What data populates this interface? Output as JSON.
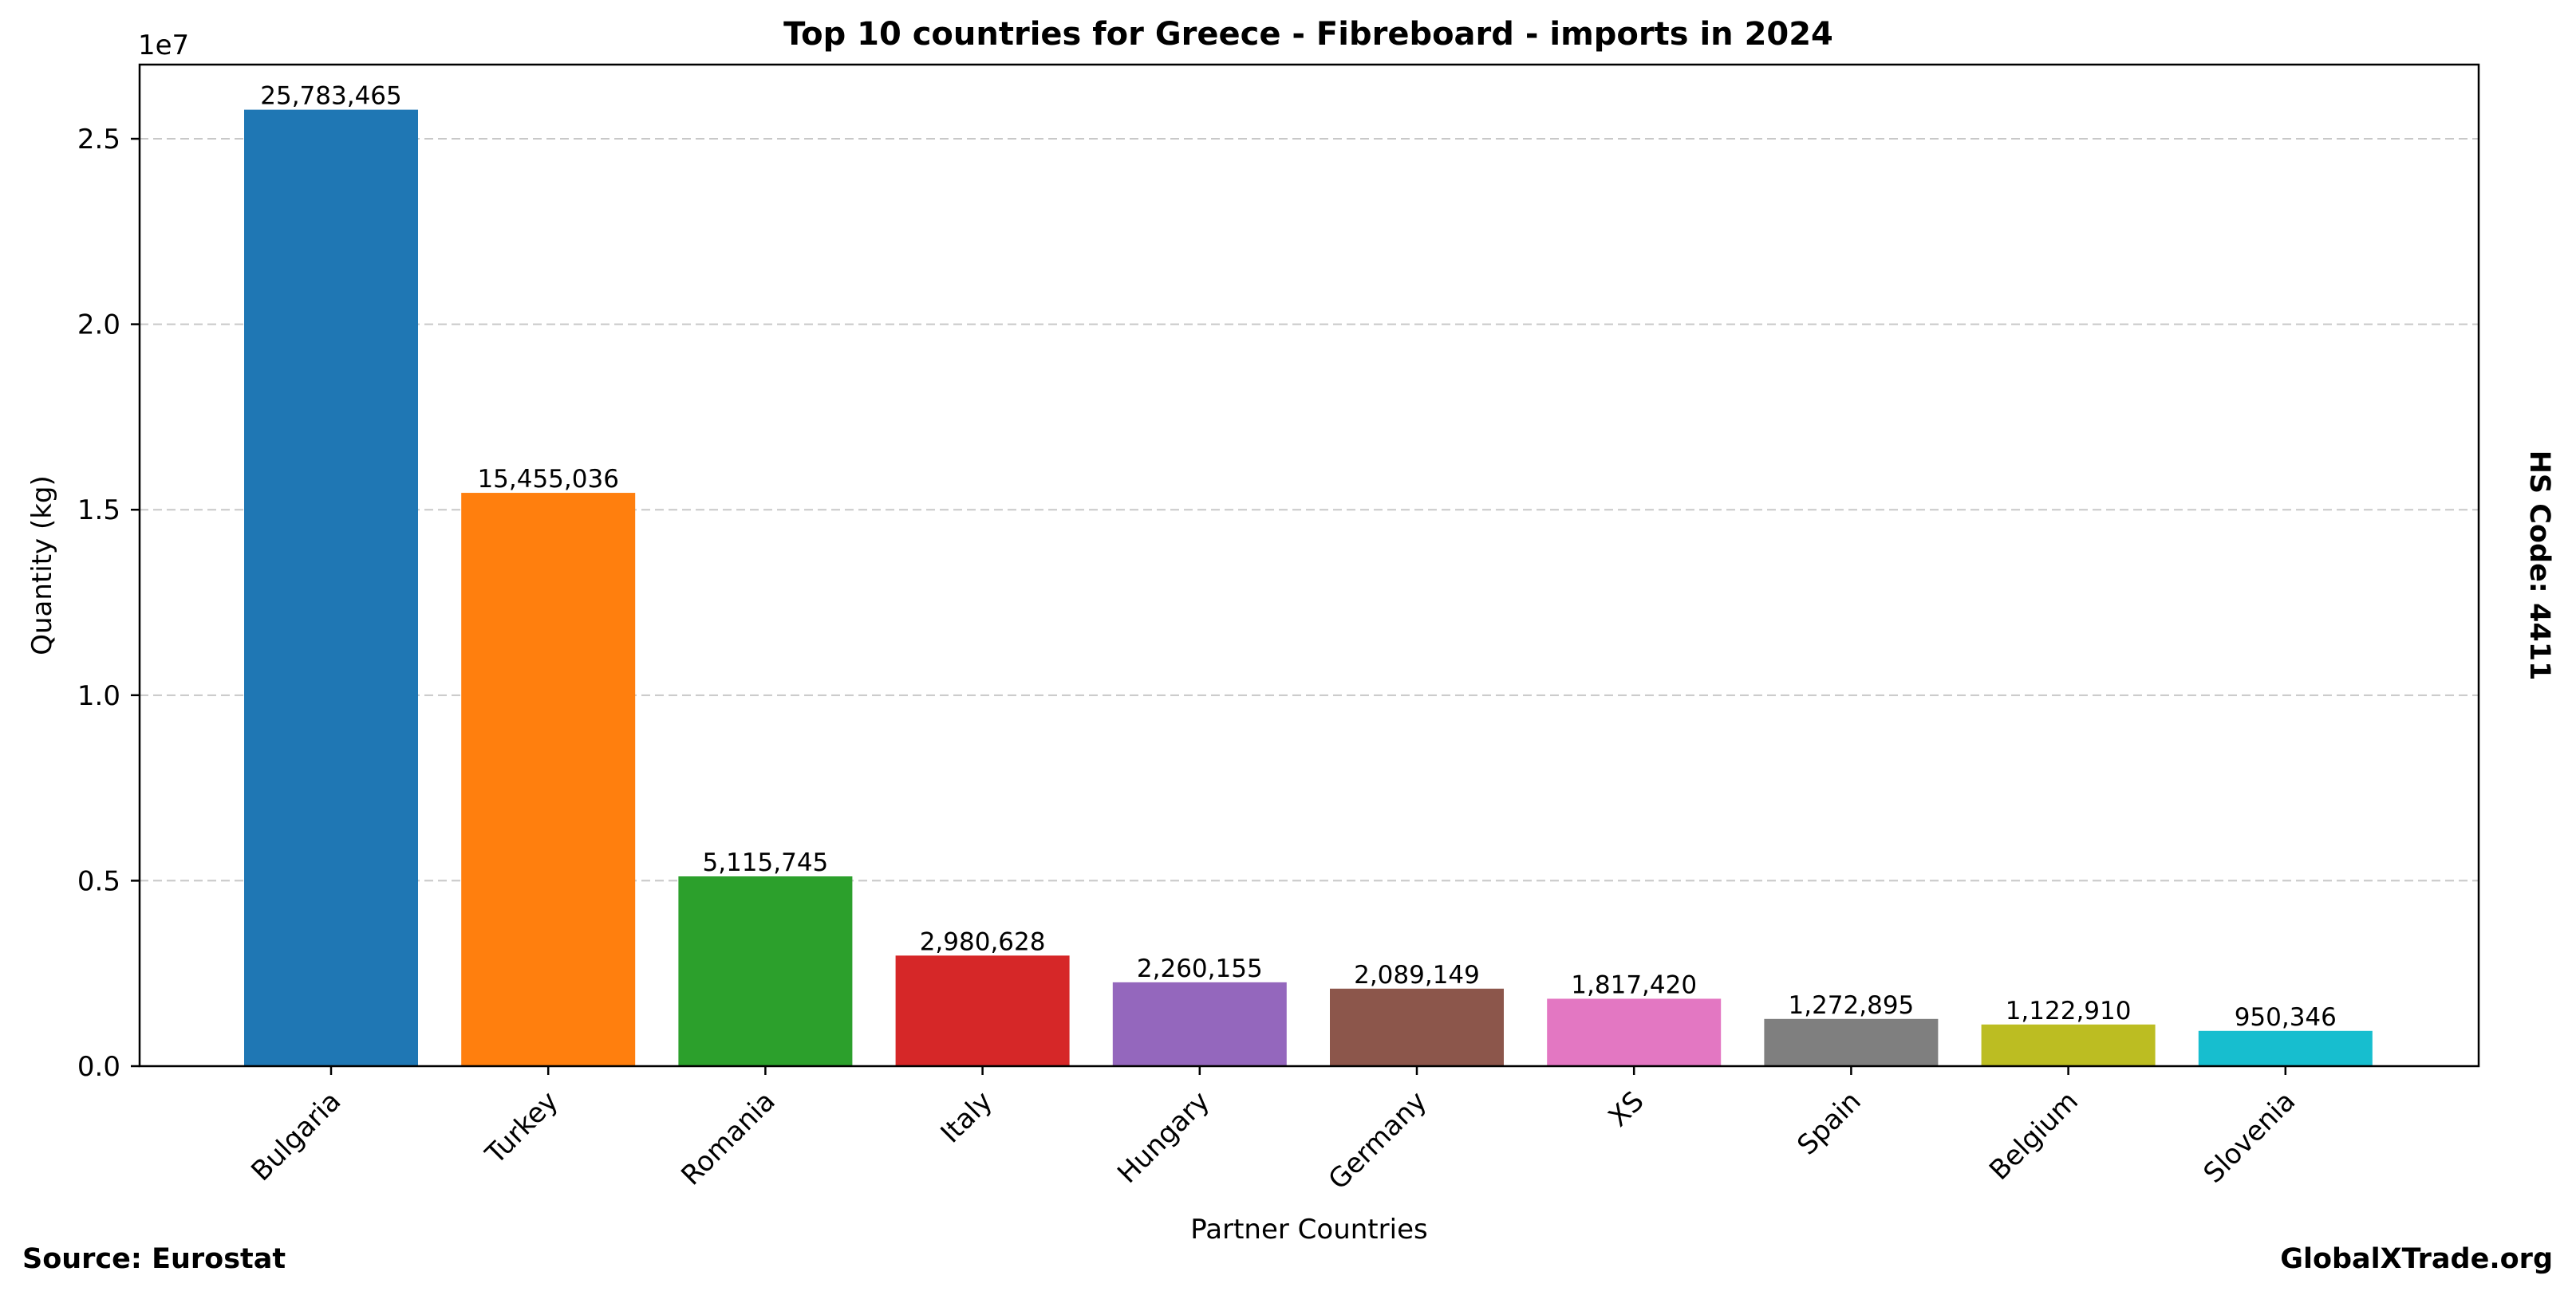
{
  "chart_data": {
    "type": "bar",
    "title": "Top 10 countries for Greece - Fibreboard - imports in 2024",
    "xlabel": "Partner Countries",
    "ylabel": "Quantity (kg)",
    "y_offset_label": "1e7",
    "ylim": [
      0,
      27000000
    ],
    "yticks": [
      0,
      5000000,
      10000000,
      15000000,
      20000000,
      25000000
    ],
    "ytick_labels": [
      "0.0",
      "0.5",
      "1.0",
      "1.5",
      "2.0",
      "2.5"
    ],
    "grid": true,
    "categories": [
      "Bulgaria",
      "Turkey",
      "Romania",
      "Italy",
      "Hungary",
      "Germany",
      "XS",
      "Spain",
      "Belgium",
      "Slovenia"
    ],
    "values": [
      25783465,
      15455036,
      5115745,
      2980628,
      2260155,
      2089149,
      1817420,
      1272895,
      1122910,
      950346
    ],
    "value_labels": [
      "25,783,465",
      "15,455,036",
      "5,115,745",
      "2,980,628",
      "2,260,155",
      "2,089,149",
      "1,817,420",
      "1,272,895",
      "1,122,910",
      "950,346"
    ],
    "colors": [
      "#1f77b4",
      "#ff7f0e",
      "#2ca02c",
      "#d62728",
      "#9467bd",
      "#8c564b",
      "#e377c2",
      "#7f7f7f",
      "#bcbd22",
      "#17becf"
    ]
  },
  "footer": {
    "source": "Source: Eurostat",
    "brand": "GlobalXTrade.org",
    "hs_code": "HS Code: 4411"
  }
}
